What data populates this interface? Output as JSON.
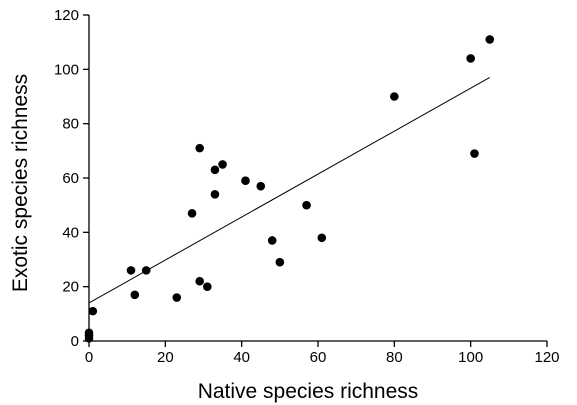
{
  "chart_data": {
    "type": "scatter",
    "title": "",
    "xlabel": "Native species richness",
    "ylabel": "Exotic species richness",
    "xlim": [
      0,
      120
    ],
    "ylim": [
      0,
      120
    ],
    "xticks": [
      0,
      20,
      40,
      60,
      80,
      100,
      120
    ],
    "yticks": [
      0,
      20,
      40,
      60,
      80,
      100,
      120
    ],
    "grid": false,
    "colors": {
      "points": "#000000",
      "line": "#000000",
      "axes": "#000000"
    },
    "points": [
      {
        "x": 0,
        "y": 1
      },
      {
        "x": 0,
        "y": 2
      },
      {
        "x": 0,
        "y": 3
      },
      {
        "x": 1,
        "y": 11
      },
      {
        "x": 11,
        "y": 26
      },
      {
        "x": 12,
        "y": 17
      },
      {
        "x": 15,
        "y": 26
      },
      {
        "x": 23,
        "y": 16
      },
      {
        "x": 27,
        "y": 47
      },
      {
        "x": 29,
        "y": 22
      },
      {
        "x": 29,
        "y": 71
      },
      {
        "x": 31,
        "y": 20
      },
      {
        "x": 33,
        "y": 54
      },
      {
        "x": 33,
        "y": 63
      },
      {
        "x": 35,
        "y": 65
      },
      {
        "x": 41,
        "y": 59
      },
      {
        "x": 45,
        "y": 57
      },
      {
        "x": 48,
        "y": 37
      },
      {
        "x": 50,
        "y": 29
      },
      {
        "x": 57,
        "y": 50
      },
      {
        "x": 61,
        "y": 38
      },
      {
        "x": 80,
        "y": 90
      },
      {
        "x": 100,
        "y": 104
      },
      {
        "x": 101,
        "y": 69
      },
      {
        "x": 105,
        "y": 111
      }
    ],
    "fit_line": {
      "x": [
        0,
        105
      ],
      "y": [
        14,
        97
      ]
    }
  }
}
